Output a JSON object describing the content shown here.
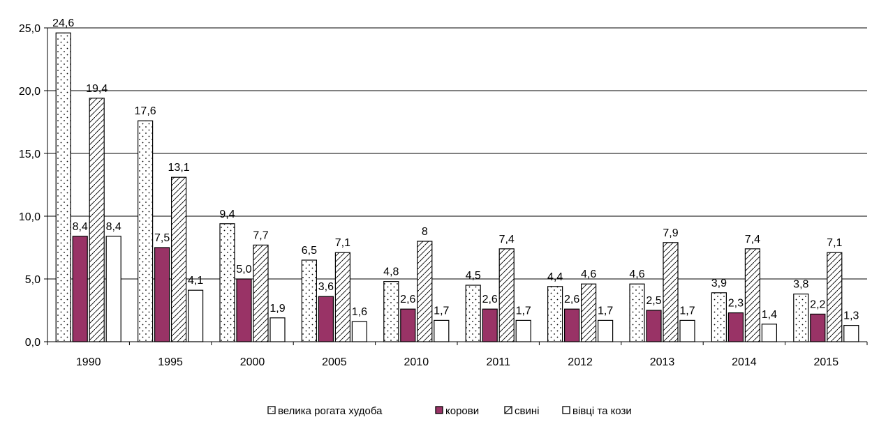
{
  "chart_data": {
    "type": "bar",
    "categories": [
      "1990",
      "1995",
      "2000",
      "2005",
      "2010",
      "2011",
      "2012",
      "2013",
      "2014",
      "2015"
    ],
    "series": [
      {
        "name": "велика рогата худоба",
        "values": [
          24.6,
          17.6,
          9.4,
          6.5,
          4.8,
          4.5,
          4.4,
          4.6,
          3.9,
          3.8
        ],
        "labels": [
          "24,6",
          "17,6",
          "9,4",
          "6,5",
          "4,8",
          "4,5",
          "4,4",
          "4,6",
          "3,9",
          "3,8"
        ],
        "pattern": "dots"
      },
      {
        "name": "корови",
        "values": [
          8.4,
          7.5,
          5.0,
          3.6,
          2.6,
          2.6,
          2.6,
          2.5,
          2.3,
          2.2
        ],
        "labels": [
          "8,4",
          "7,5",
          "5,0",
          "3,6",
          "2,6",
          "2,6",
          "2,6",
          "2,5",
          "2,3",
          "2,2"
        ],
        "color": "#993366"
      },
      {
        "name": "свині",
        "values": [
          19.4,
          13.1,
          7.7,
          7.1,
          8,
          7.4,
          4.6,
          7.9,
          7.4,
          7.1
        ],
        "labels": [
          "19,4",
          "13,1",
          "7,7",
          "7,1",
          "8",
          "7,4",
          "4,6",
          "7,9",
          "7,4",
          "7,1"
        ],
        "pattern": "diagonal"
      },
      {
        "name": "вівці та кози",
        "values": [
          8.4,
          4.1,
          1.9,
          1.6,
          1.7,
          1.7,
          1.7,
          1.7,
          1.4,
          1.3
        ],
        "labels": [
          "8,4",
          "4,1",
          "1,9",
          "1,6",
          "1,7",
          "1,7",
          "1,7",
          "1,7",
          "1,4",
          "1,3"
        ],
        "color": "#ffffff"
      }
    ],
    "ylim": [
      0,
      25
    ],
    "yticks": [
      {
        "value": 0,
        "label": "0,0"
      },
      {
        "value": 5,
        "label": "5,0"
      },
      {
        "value": 10,
        "label": "10,0"
      },
      {
        "value": 15,
        "label": "15,0"
      },
      {
        "value": 20,
        "label": "20,0"
      },
      {
        "value": 25,
        "label": "25,0"
      }
    ],
    "grid": true,
    "legend_position": "bottom",
    "title": "",
    "xlabel": "",
    "ylabel": ""
  }
}
